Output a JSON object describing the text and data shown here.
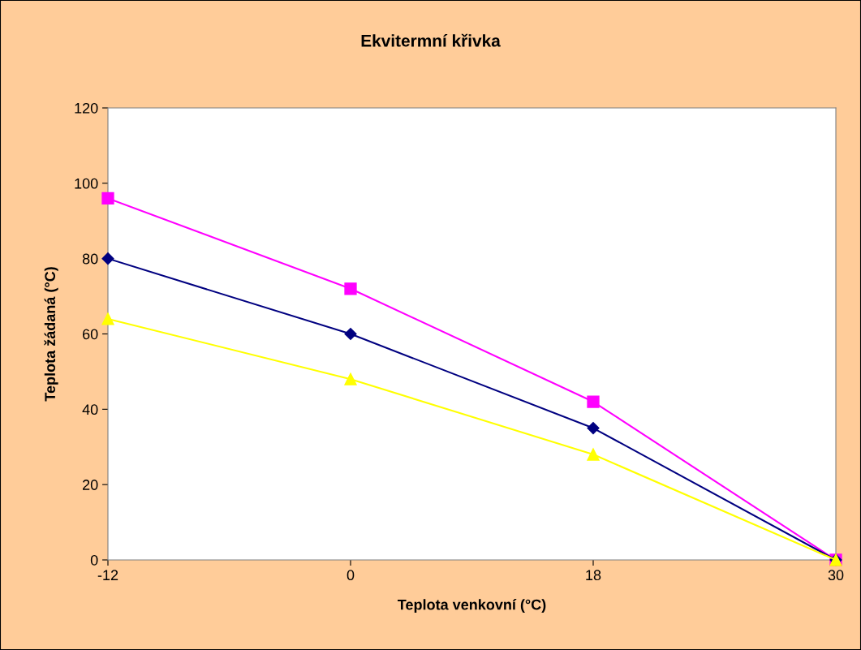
{
  "chart_data": {
    "type": "line",
    "title": "Ekvitermní křivka",
    "xlabel": "Teplota venkovní (°C)",
    "ylabel": "Teplota žádaná (°C)",
    "categories": [
      "-12",
      "0",
      "18",
      "30"
    ],
    "series": [
      {
        "color": "#ff00ff",
        "marker": "square",
        "values": [
          96,
          72,
          42,
          0
        ]
      },
      {
        "color": "#000080",
        "marker": "diamond",
        "values": [
          80,
          60,
          35,
          0
        ]
      },
      {
        "color": "#ffff00",
        "marker": "triangle",
        "values": [
          64,
          48,
          28,
          0
        ]
      }
    ],
    "ylim": [
      0,
      120
    ],
    "yticks": [
      0,
      20,
      40,
      60,
      80,
      100,
      120
    ],
    "grid": false,
    "line_style": "solid"
  }
}
